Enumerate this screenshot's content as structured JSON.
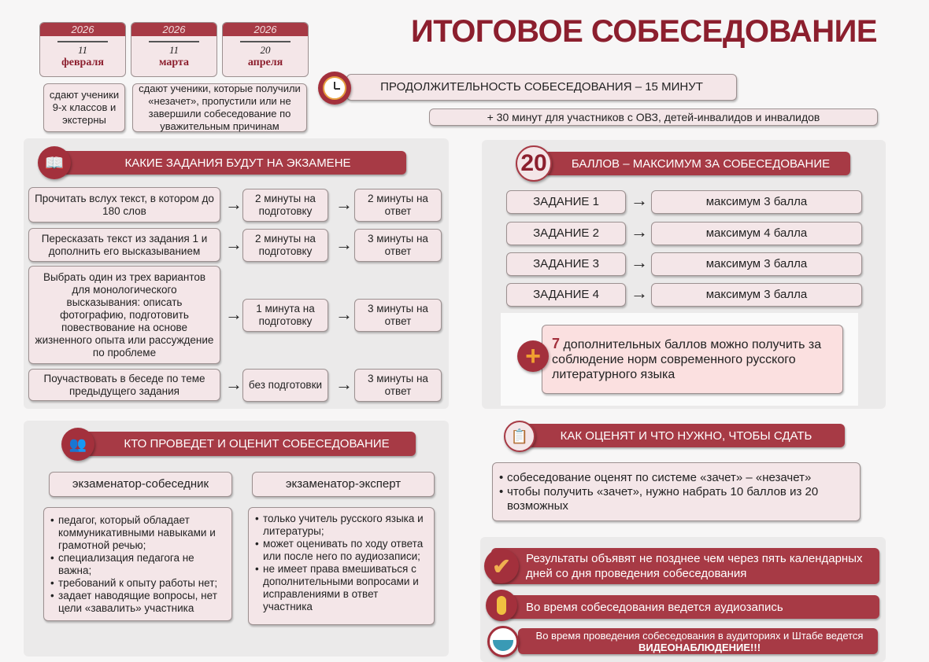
{
  "title": "ИТОГОВОЕ СОБЕСЕДОВАНИЕ",
  "dates": [
    {
      "year": "2026",
      "day": "11",
      "month": "февраля"
    },
    {
      "year": "2026",
      "day": "11",
      "month": "марта"
    },
    {
      "year": "2026",
      "day": "20",
      "month": "апреля"
    }
  ],
  "date_notes": [
    "сдают ученики 9-х классов и экстерны",
    "сдают ученики, которые получили «незачет», пропустили или не завершили собеседование по уважительным причинам"
  ],
  "duration": {
    "text": "ПРОДОЛЖИТЕЛЬНОСТЬ СОБЕСЕДОВАНИЯ –  15 МИНУТ",
    "extra": "+ 30 минут для участников с ОВЗ, детей-инвалидов и инвалидов"
  },
  "tasks": {
    "header": "КАКИЕ ЗАДАНИЯ БУДУТ НА ЭКЗАМЕНЕ",
    "rows": [
      {
        "task": "Прочитать вслух текст, в котором до 180 слов",
        "prep": "2 минуты на подготовку",
        "answer": "2 минуты на ответ"
      },
      {
        "task": "Пересказать текст из задания 1 и дополнить его высказыванием",
        "prep": "2 минуты на подготовку",
        "answer": "3 минуты на ответ"
      },
      {
        "task": "Выбрать один из трех вариантов для монологического высказывания: описать фотографию, подготовить повествование на основе жизненного опыта или рассуждение по проблеме",
        "prep": "1 минута на подготовку",
        "answer": "3 минуты на ответ"
      },
      {
        "task": "Поучаствовать в беседе по теме предыдущего задания",
        "prep": "без подготовки",
        "answer": "3 минуты на ответ"
      }
    ]
  },
  "scores": {
    "number": "20",
    "header": "БАЛЛОВ – МАКСИМУМ ЗА СОБЕСЕДОВАНИЕ",
    "rows": [
      {
        "task": "ЗАДАНИЕ 1",
        "max": "максимум 3 балла"
      },
      {
        "task": "ЗАДАНИЕ 2",
        "max": "максимум 4 балла"
      },
      {
        "task": "ЗАДАНИЕ 3",
        "max": "максимум 3 балла"
      },
      {
        "task": "ЗАДАНИЕ 4",
        "max": "максимум 3 балла"
      }
    ],
    "bonus_number": "7",
    "bonus_text": " дополнительных баллов можно получить за соблюдение норм современного русского литературного языка"
  },
  "examiners": {
    "header": "КТО ПРОВЕДЕТ И ОЦЕНИТ СОБЕСЕДОВАНИЕ",
    "cols": [
      {
        "title": "экзаменатор-собеседник",
        "items": [
          "педагог, который обладает коммуникативными навыками и грамотной речью;",
          "специализация педагога не важна;",
          "требований к опыту работы нет;",
          "задает наводящие вопросы, нет цели «завалить» участника"
        ]
      },
      {
        "title": "экзаменатор-эксперт",
        "items": [
          "только учитель русского языка и литературы;",
          "может оценивать по ходу ответа или после него по аудиозаписи;",
          "не имеет права вмешиваться с дополнительными вопросами и исправлениями в ответ участника"
        ]
      }
    ]
  },
  "grading": {
    "header": "КАК ОЦЕНЯТ И ЧТО НУЖНО, ЧТОБЫ СДАТЬ",
    "items": [
      "собеседование оценят по системе «зачет» – «незачет»",
      "чтобы получить «зачет», нужно набрать 10 баллов из 20 возможных"
    ]
  },
  "notices": [
    "Результаты объявят не позднее чем через пять календарных дней со дня проведения собеседования",
    "Во время собеседования ведется аудиозапись"
  ],
  "video": {
    "text": "Во время проведения собеседования в аудиториях и Штабе ведется",
    "emph": "ВИДЕОНАБЛЮДЕНИЕ!!!"
  },
  "colors": {
    "accent": "#a73a45",
    "box": "#f4e6e8",
    "panel": "#ebeaea"
  }
}
